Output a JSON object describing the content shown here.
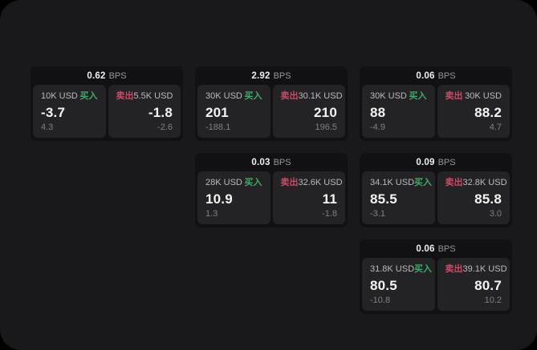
{
  "labels": {
    "bps_unit": "BPS",
    "buy": "买入",
    "sell": "卖出"
  },
  "colors": {
    "page_background": "#19191b",
    "card_background": "#111113",
    "panel_background": "#232325",
    "buy_accent": "#3dab68",
    "sell_accent": "#cc4a66"
  },
  "cards": [
    {
      "bps": "0.62",
      "buy": {
        "amount": "10K USD",
        "price": "-3.7",
        "change": "4.3"
      },
      "sell": {
        "amount": "5.5K USD",
        "price": "-1.8",
        "change": "-2.6"
      }
    },
    {
      "bps": "2.92",
      "buy": {
        "amount": "30K USD",
        "price": "201",
        "change": "-188.1"
      },
      "sell": {
        "amount": "30.1K USD",
        "price": "210",
        "change": "196.5"
      }
    },
    {
      "bps": "0.06",
      "buy": {
        "amount": "30K USD",
        "price": "88",
        "change": "-4.9"
      },
      "sell": {
        "amount": "30K USD",
        "price": "88.2",
        "change": "4.7"
      }
    },
    {
      "bps": "0.03",
      "buy": {
        "amount": "28K USD",
        "price": "10.9",
        "change": "1.3"
      },
      "sell": {
        "amount": "32.6K USD",
        "price": "11",
        "change": "-1.8"
      }
    },
    {
      "bps": "0.09",
      "buy": {
        "amount": "34.1K USD",
        "price": "85.5",
        "change": "-3.1"
      },
      "sell": {
        "amount": "32.8K USD",
        "price": "85.8",
        "change": "3.0"
      }
    },
    {
      "bps": "0.06",
      "buy": {
        "amount": "31.8K USD",
        "price": "80.5",
        "change": "-10.8"
      },
      "sell": {
        "amount": "39.1K USD",
        "price": "80.7",
        "change": "10.2"
      }
    }
  ]
}
